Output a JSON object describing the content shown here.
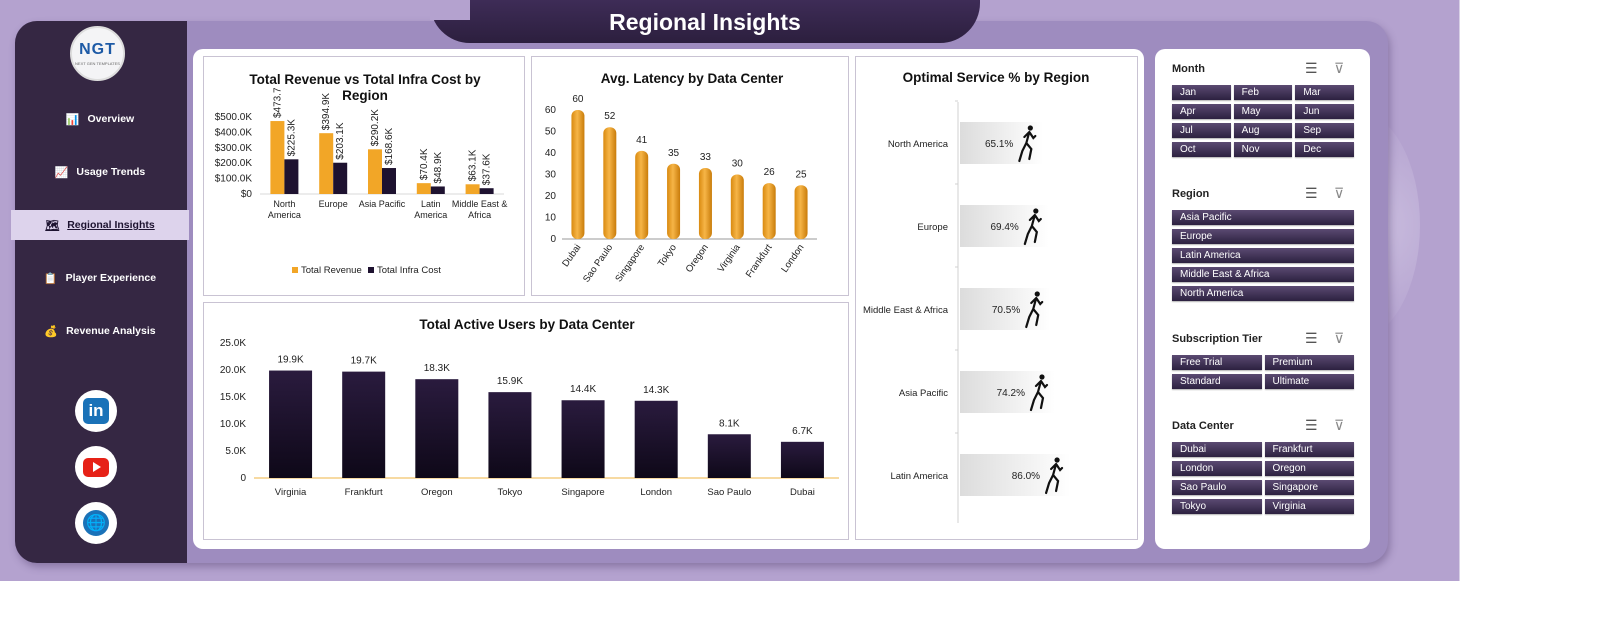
{
  "title": "Regional Insights",
  "logo": {
    "text": "NGT",
    "subtext": "NEXT GEN TEMPLATES"
  },
  "nav": [
    {
      "label": "Overview",
      "icon": "bar-chart-icon",
      "glyph": "📊"
    },
    {
      "label": "Usage Trends",
      "icon": "trend-chart-icon",
      "glyph": "📈"
    },
    {
      "label": "Regional Insights",
      "icon": "world-map-icon",
      "glyph": "🗺",
      "active": true
    },
    {
      "label": "Player Experience",
      "icon": "clipboard-icon",
      "glyph": "📋"
    },
    {
      "label": "Revenue Analysis",
      "icon": "money-bag-icon",
      "glyph": "💰"
    }
  ],
  "social": [
    {
      "name": "linkedin",
      "icon": "linkedin-icon",
      "glyph": "in"
    },
    {
      "name": "youtube",
      "icon": "youtube-icon"
    },
    {
      "name": "website",
      "icon": "globe-icon",
      "glyph": "🌐"
    }
  ],
  "colors": {
    "orange": "#f2a627",
    "dark": "#1e1230",
    "accent": "#352743"
  },
  "chart_data": [
    {
      "type": "bar",
      "title": "Total Revenue vs Total Infra Cost by Region",
      "categories": [
        "North America",
        "Europe",
        "Asia Pacific",
        "Latin America",
        "Middle East & Africa"
      ],
      "series": [
        {
          "name": "Total Revenue",
          "values": [
            473.7,
            394.9,
            290.2,
            70.4,
            63.1
          ],
          "labels": [
            "$473.7",
            "$394.9K",
            "$290.2K",
            "$70.4K",
            "$63.1K"
          ]
        },
        {
          "name": "Total Infra Cost",
          "values": [
            225.3,
            203.1,
            168.6,
            48.9,
            37.6
          ],
          "labels": [
            "$225.3K",
            "$203.1K",
            "$168.6K",
            "$48.9K",
            "$37.6K"
          ]
        }
      ],
      "yticks": [
        "$0",
        "$100.0K",
        "$200.0K",
        "$300.0K",
        "$400.0K",
        "$500.0K"
      ],
      "ylim": [
        0,
        500
      ],
      "legend": "bottom"
    },
    {
      "type": "bar",
      "title": "Avg. Latency by Data Center",
      "categories": [
        "Dubai",
        "Sao Paulo",
        "Singapore",
        "Tokyo",
        "Oregon",
        "Virginia",
        "Frankfurt",
        "London"
      ],
      "values": [
        60,
        52,
        41,
        35,
        33,
        30,
        26,
        25
      ],
      "yticks": [
        "0",
        "10",
        "20",
        "30",
        "40",
        "50",
        "60"
      ],
      "ylim": [
        0,
        60
      ]
    },
    {
      "type": "bar",
      "title": "Optimal Service % by Region",
      "categories": [
        "North America",
        "Europe",
        "Middle East & Africa",
        "Asia Pacific",
        "Latin America"
      ],
      "values": [
        65.1,
        69.4,
        70.5,
        74.2,
        86.0
      ],
      "labels": [
        "65.1%",
        "69.4%",
        "70.5%",
        "74.2%",
        "86.0%"
      ],
      "orientation": "horizontal"
    },
    {
      "type": "bar",
      "title": "Total Active Users by Data Center",
      "categories": [
        "Virginia",
        "Frankfurt",
        "Oregon",
        "Tokyo",
        "Singapore",
        "London",
        "Sao Paulo",
        "Dubai"
      ],
      "values": [
        19.9,
        19.7,
        18.3,
        15.9,
        14.4,
        14.3,
        8.1,
        6.7
      ],
      "labels": [
        "19.9K",
        "19.7K",
        "18.3K",
        "15.9K",
        "14.4K",
        "14.3K",
        "8.1K",
        "6.7K"
      ],
      "yticks": [
        "0",
        "5.0K",
        "10.0K",
        "15.0K",
        "20.0K",
        "25.0K"
      ],
      "ylim": [
        0,
        25
      ]
    }
  ],
  "slicers": [
    {
      "title": "Month",
      "cols": 3,
      "items": [
        "Jan",
        "Feb",
        "Mar",
        "Apr",
        "May",
        "Jun",
        "Jul",
        "Aug",
        "Sep",
        "Oct",
        "Nov",
        "Dec"
      ]
    },
    {
      "title": "Region",
      "cols": 1,
      "items": [
        "Asia Pacific",
        "Europe",
        "Latin America",
        "Middle East & Africa",
        "North America"
      ]
    },
    {
      "title": "Subscription Tier",
      "cols": 2,
      "items": [
        "Free Trial",
        "Premium",
        "Standard",
        "Ultimate"
      ]
    },
    {
      "title": "Data Center",
      "cols": 2,
      "items": [
        "Dubai",
        "Frankfurt",
        "London",
        "Oregon",
        "Sao Paulo",
        "Singapore",
        "Tokyo",
        "Virginia"
      ]
    }
  ]
}
